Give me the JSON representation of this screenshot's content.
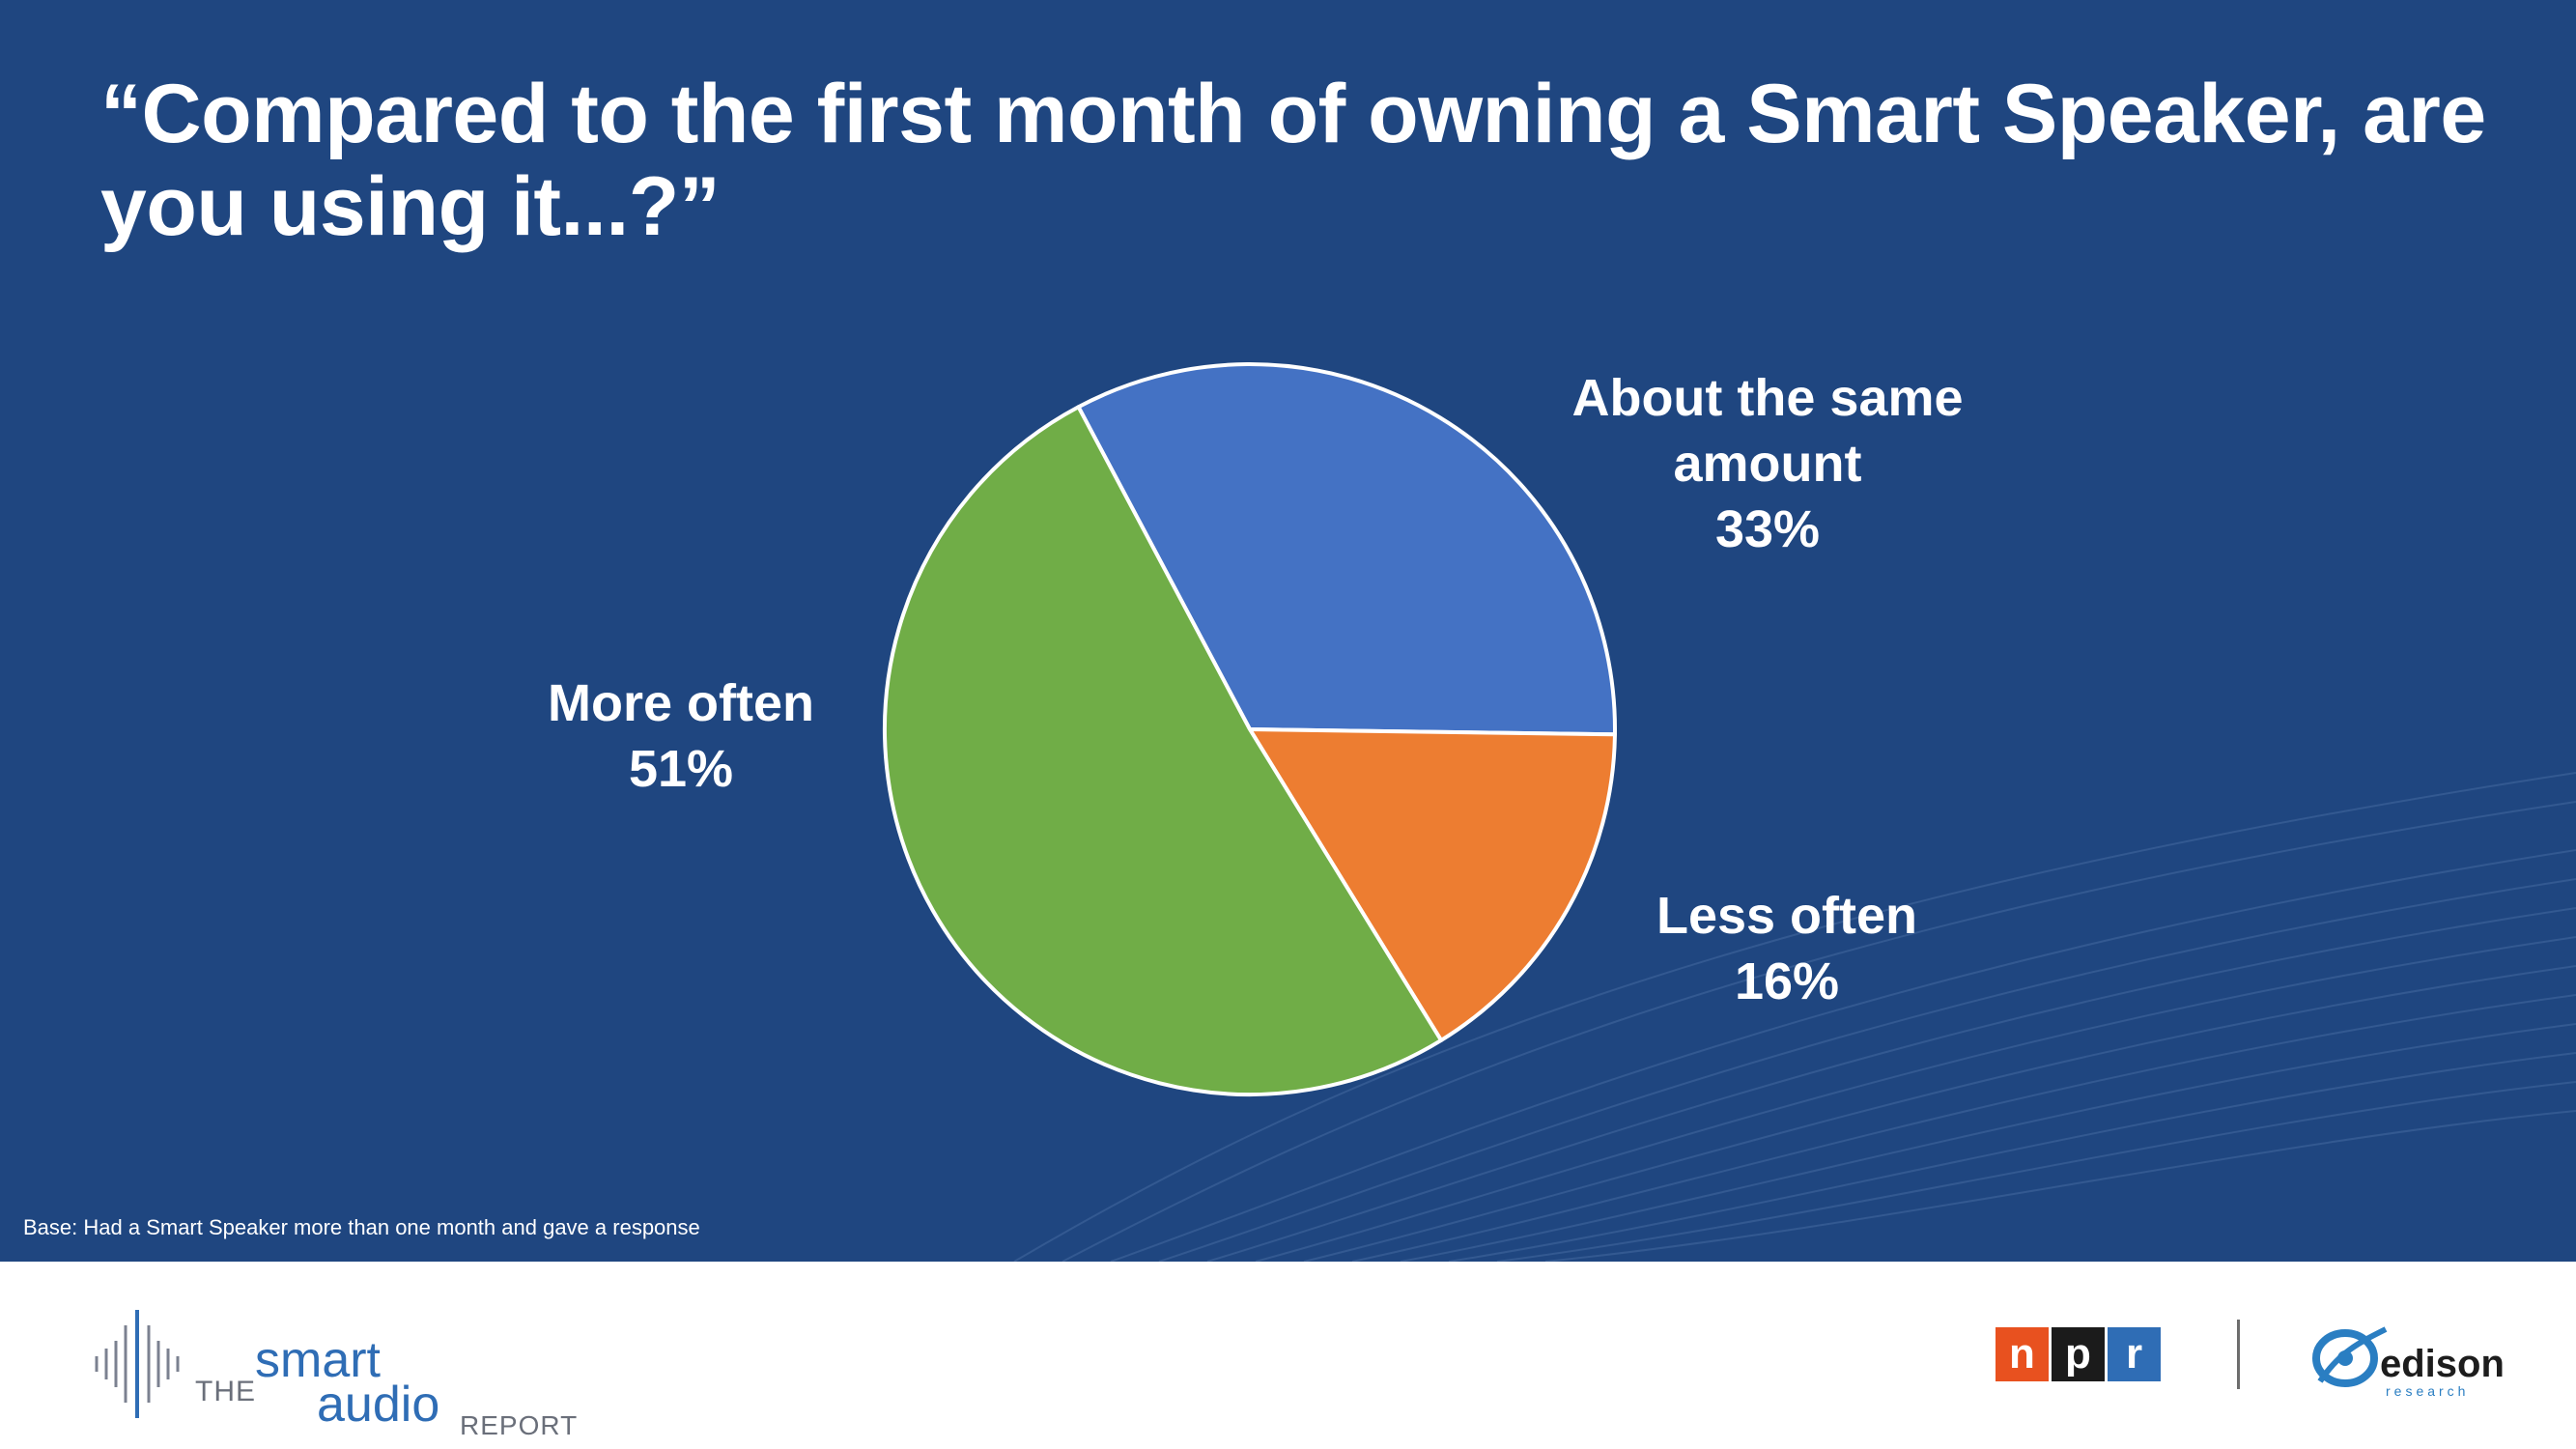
{
  "title": "“Compared to the first month of owning a Smart Speaker, are you using it...?”",
  "base_note": "Base: Had a Smart Speaker more than one month and gave a response",
  "colors": {
    "background": "#1f4680",
    "about_same": "#4472c4",
    "less_often": "#ed7d31",
    "more_often": "#70ad47"
  },
  "chart_data": {
    "type": "pie",
    "title": "“Compared to the first month of owning a Smart Speaker, are you using it...?”",
    "slices": [
      {
        "label_lines": [
          "About the same",
          "amount"
        ],
        "value": 33,
        "value_label": "33%",
        "color": "#4472c4"
      },
      {
        "label_lines": [
          "Less often"
        ],
        "value": 16,
        "value_label": "16%",
        "color": "#ed7d31"
      },
      {
        "label_lines": [
          "More often"
        ],
        "value": 51,
        "value_label": "51%",
        "color": "#70ad47"
      }
    ],
    "start_angle_deg": -28,
    "direction": "clockwise"
  },
  "footer": {
    "report_logo": {
      "the": "THE",
      "smart": "smart",
      "audio": "audio",
      "report": "REPORT"
    },
    "npr_logo": {
      "n": "n",
      "p": "p",
      "r": "r",
      "colors": [
        "#e8511f",
        "#1b1b1b",
        "#2f6db5"
      ]
    },
    "edison_logo": {
      "name": "edison",
      "sub": "research"
    }
  }
}
